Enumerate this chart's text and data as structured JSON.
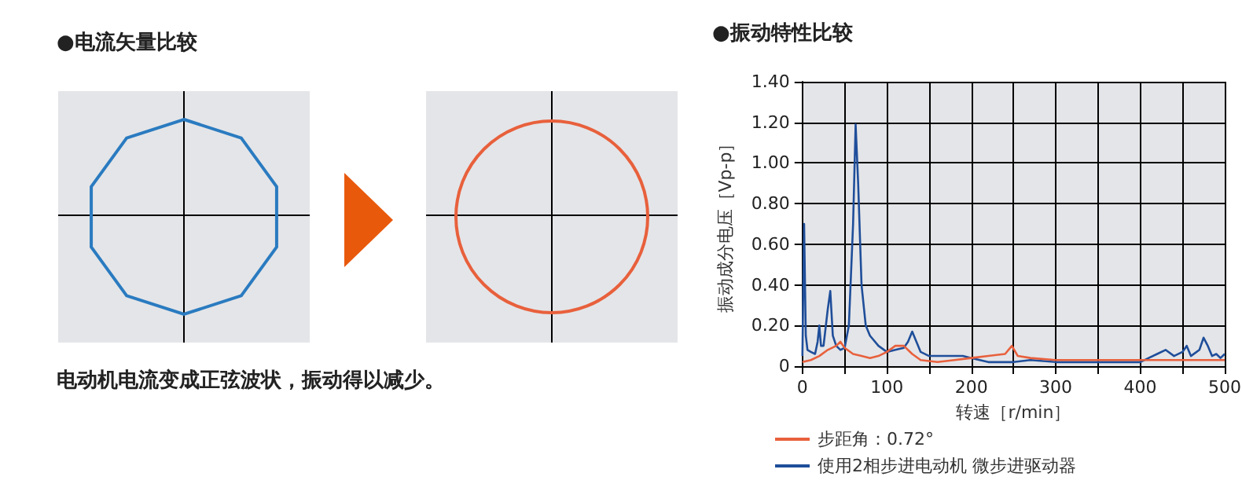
{
  "chart_data": [
    {
      "type": "other",
      "title": "●电流矢量比较",
      "annotations": [
        "电动机电流变成正弦波状，振动得以减少。"
      ]
    },
    {
      "type": "line",
      "title": "●振动特性比较",
      "xlabel": "转速［r/min］",
      "ylabel": "振动成分电压［Vp-p］",
      "xlim": [
        0,
        500
      ],
      "ylim": [
        0,
        1.4
      ],
      "xticks": [
        0,
        {
          "value": 50,
          "label": null
        },
        100,
        {
          "value": 150,
          "label": null
        },
        200,
        {
          "value": 250,
          "label": null
        },
        300,
        {
          "value": 350,
          "label": null
        },
        400,
        {
          "value": 450,
          "label": null
        },
        500
      ],
      "yticks": [
        0,
        {
          "value": 0.2,
          "label": "0.20"
        },
        {
          "value": 0.4,
          "label": "0.40"
        },
        {
          "value": 0.6,
          "label": "0.60"
        },
        {
          "value": 0.8,
          "label": "0.80"
        },
        {
          "value": 1,
          "label": "1.00"
        },
        {
          "value": 1.2,
          "label": "1.20"
        },
        {
          "value": 1.4,
          "label": "1.40"
        }
      ],
      "grid": true,
      "legend": "bottom",
      "marker": "none",
      "series": [
        {
          "name": "步距角：0.72°",
          "color": "#e8603c",
          "x": [
            0,
            10,
            20,
            30,
            40,
            45,
            50,
            60,
            70,
            80,
            90,
            100,
            110,
            120,
            130,
            140,
            160,
            180,
            200,
            220,
            240,
            248,
            255,
            270,
            300,
            350,
            400,
            450,
            500
          ],
          "values": [
            0.02,
            0.03,
            0.05,
            0.08,
            0.1,
            0.12,
            0.09,
            0.06,
            0.05,
            0.04,
            0.05,
            0.07,
            0.1,
            0.1,
            0.06,
            0.03,
            0.02,
            0.03,
            0.04,
            0.05,
            0.06,
            0.1,
            0.05,
            0.04,
            0.03,
            0.03,
            0.03,
            0.03,
            0.03
          ]
        },
        {
          "name": "使用2相步进电动机 微步进驱动器",
          "color": "#1f4e9a",
          "x": [
            0,
            2,
            4,
            6,
            10,
            15,
            18,
            20,
            22,
            25,
            30,
            33,
            36,
            40,
            45,
            50,
            55,
            60,
            63,
            66,
            70,
            75,
            80,
            90,
            100,
            110,
            120,
            125,
            130,
            135,
            140,
            150,
            170,
            190,
            200,
            220,
            250,
            270,
            300,
            350,
            400,
            410,
            420,
            430,
            440,
            450,
            455,
            460,
            470,
            475,
            480,
            485,
            490,
            495,
            500
          ],
          "values": [
            0.05,
            0.7,
            0.15,
            0.08,
            0.07,
            0.06,
            0.12,
            0.2,
            0.1,
            0.1,
            0.28,
            0.37,
            0.15,
            0.1,
            0.08,
            0.09,
            0.2,
            0.7,
            1.19,
            0.9,
            0.4,
            0.2,
            0.15,
            0.1,
            0.07,
            0.08,
            0.09,
            0.12,
            0.17,
            0.12,
            0.07,
            0.05,
            0.05,
            0.05,
            0.04,
            0.02,
            0.02,
            0.03,
            0.02,
            0.02,
            0.02,
            0.04,
            0.06,
            0.08,
            0.05,
            0.07,
            0.1,
            0.05,
            0.08,
            0.14,
            0.1,
            0.05,
            0.06,
            0.04,
            0.06
          ]
        }
      ]
    }
  ]
}
